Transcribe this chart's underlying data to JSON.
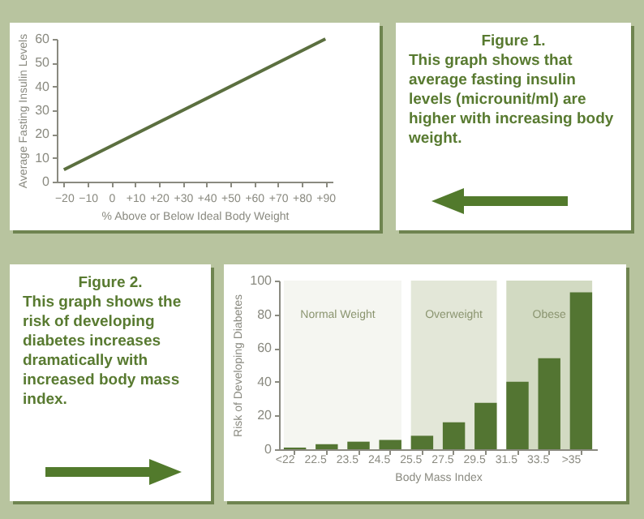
{
  "chart_data": [
    {
      "type": "line",
      "xlabel": "% Above or Below Ideal Body Weight",
      "ylabel": "Average Fasting Insulin Levels",
      "series": [
        {
          "color": "#5b6f3f",
          "x": [
            -20,
            90
          ],
          "values": [
            5,
            60
          ]
        }
      ],
      "xlim": [
        -23,
        93
      ],
      "xticks": [
        -20,
        -10,
        0,
        {
          "value": 10,
          "label": "+10"
        },
        {
          "value": 20,
          "label": "+20"
        },
        {
          "value": 30,
          "label": "+30"
        },
        {
          "value": 40,
          "label": "+40"
        },
        {
          "value": 50,
          "label": "+50"
        },
        {
          "value": 60,
          "label": "+60"
        },
        {
          "value": 70,
          "label": "+70"
        },
        {
          "value": 80,
          "label": "+80"
        },
        {
          "value": 90,
          "label": "+90"
        }
      ],
      "ylim": [
        0,
        60
      ],
      "yticks": [
        0,
        10,
        20,
        30,
        40,
        50,
        60
      ],
      "annotations": [
        "Figure 1.",
        "This graph shows that average fasting insulin levels (microunit/ml) are higher with increasing body weight."
      ]
    },
    {
      "type": "bar",
      "xlabel": "Body Mass Index",
      "ylabel": "Risk of Developing Diabetes",
      "categories": [
        "<22",
        "22.5",
        "23.5",
        "24.5",
        "25.5",
        "27.5",
        "29.5",
        "31.5",
        "33.5",
        ">35"
      ],
      "values": [
        1,
        3,
        4.5,
        5.5,
        8,
        16,
        27.5,
        40,
        54,
        93
      ],
      "color": "#537532",
      "ylim": [
        0,
        100
      ],
      "yticks": [
        0,
        20,
        40,
        60,
        80,
        100
      ],
      "bands": [
        {
          "axis": "x",
          "from": "<22",
          "to": "24.5",
          "label": "Normal Weight",
          "color": "#f5f6f1"
        },
        {
          "axis": "x",
          "from": "25.5",
          "to": "29.5",
          "label": "Overweight",
          "color": "#e3e7d8"
        },
        {
          "axis": "x",
          "from": "31.5",
          "to": ">35",
          "label": "Obese",
          "color": "#d2dac2"
        }
      ],
      "annotations": [
        "Figure 2.",
        "This graph shows the risk of developing diabetes increases dramatically with increased body mass index."
      ]
    }
  ]
}
